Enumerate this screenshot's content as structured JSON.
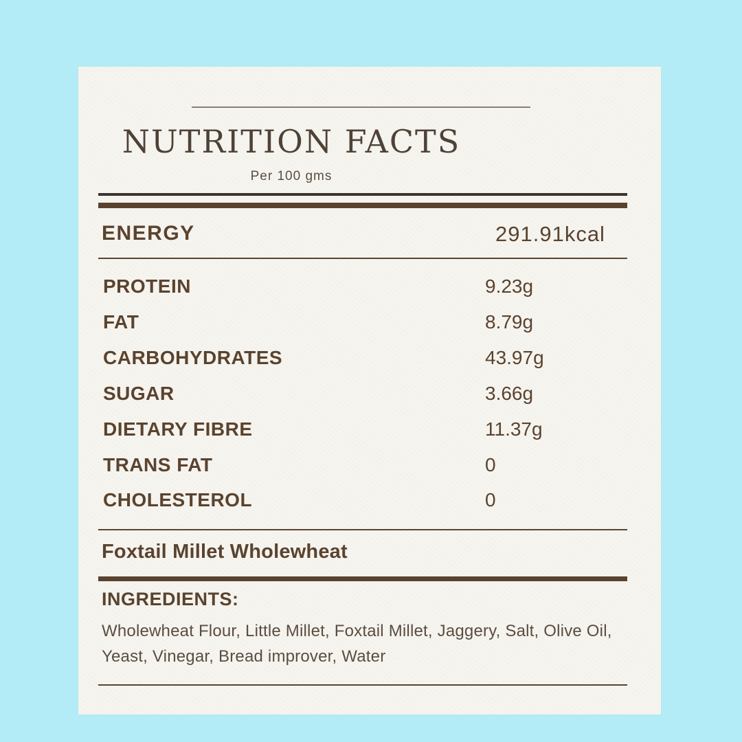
{
  "colors": {
    "background": "#b3ecf6",
    "card": "#f7f5f0",
    "text": "#5a432e",
    "rule_dark": "#3a3430",
    "rule_brown": "#5a432e"
  },
  "header": {
    "title": "NUTRITION FACTS",
    "subtitle": "Per 100 gms"
  },
  "energy": {
    "label": "ENERGY",
    "value": "291.91kcal"
  },
  "nutrients": [
    {
      "label": "PROTEIN",
      "value": "9.23g"
    },
    {
      "label": "FAT",
      "value": "8.79g"
    },
    {
      "label": "CARBOHYDRATES",
      "value": "43.97g"
    },
    {
      "label": "SUGAR",
      "value": "3.66g"
    },
    {
      "label": "DIETARY FIBRE",
      "value": "11.37g"
    },
    {
      "label": "TRANS FAT",
      "value": "0"
    },
    {
      "label": "CHOLESTEROL",
      "value": "0"
    }
  ],
  "product": {
    "name": "Foxtail Millet Wholewheat"
  },
  "ingredients": {
    "heading": "INGREDIENTS:",
    "text": "Wholewheat Flour, Little Millet, Foxtail Millet, Jaggery, Salt, Olive Oil, Yeast, Vinegar, Bread improver, Water"
  }
}
